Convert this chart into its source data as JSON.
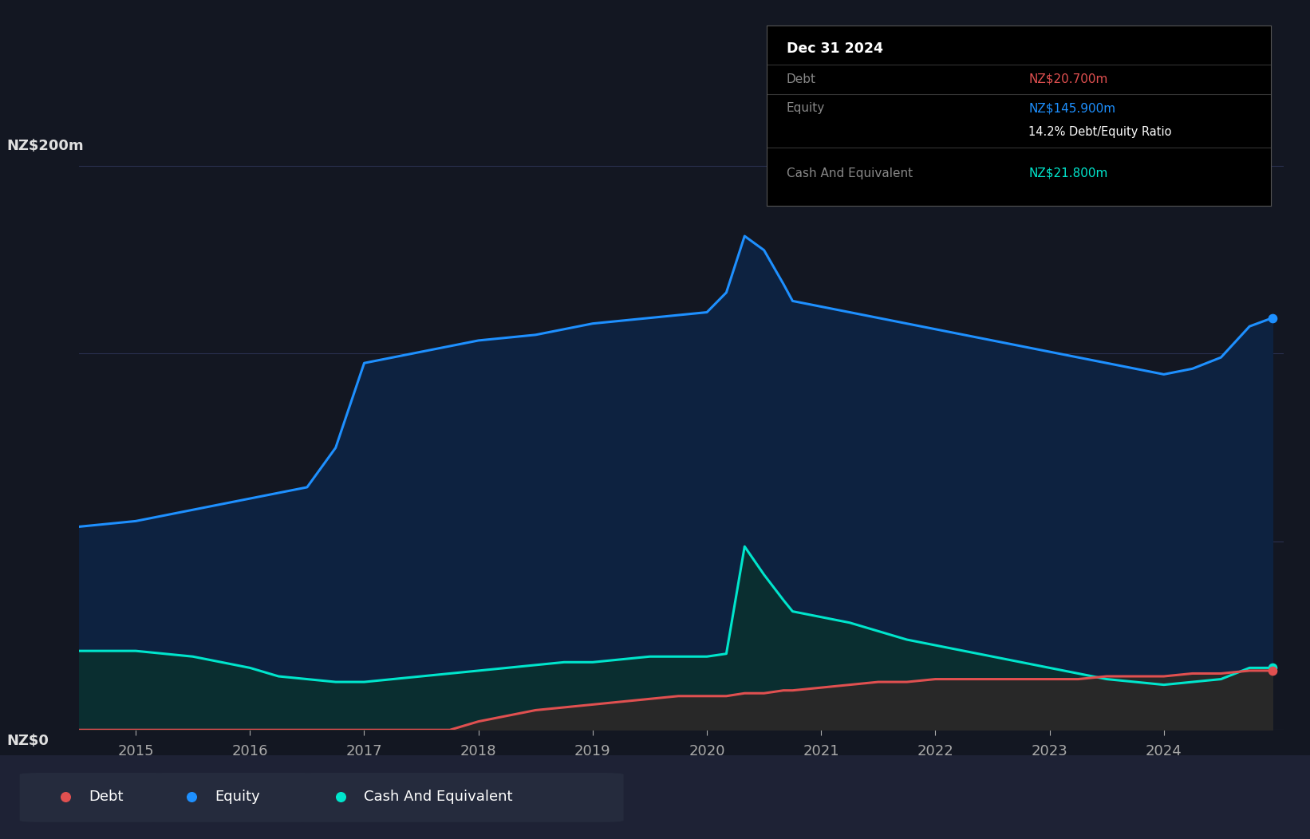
{
  "background_color": "#131722",
  "grid_color": "#2a3050",
  "axis_label_color": "#e0e0e0",
  "tick_color": "#aaaaaa",
  "ylim": [
    0,
    220
  ],
  "series": {
    "equity": {
      "line_color": "#1e90ff",
      "fill_color": "#0d2240"
    },
    "cash": {
      "line_color": "#00e5cc",
      "fill_color": "#0a2e30"
    },
    "debt": {
      "line_color": "#e05050",
      "fill_color": "#282828"
    }
  },
  "tooltip": {
    "date": "Dec 31 2024",
    "debt_label": "Debt",
    "debt_value": "NZ$20.700m",
    "debt_color": "#e05050",
    "equity_label": "Equity",
    "equity_value": "NZ$145.900m",
    "equity_color": "#1e90ff",
    "ratio_text": "14.2% Debt/Equity Ratio",
    "cash_label": "Cash And Equivalent",
    "cash_value": "NZ$21.800m",
    "cash_color": "#00e5cc"
  },
  "legend_items": [
    {
      "label": "Debt",
      "color": "#e05050"
    },
    {
      "label": "Equity",
      "color": "#1e90ff"
    },
    {
      "label": "Cash And Equivalent",
      "color": "#00e5cc"
    }
  ],
  "dates": [
    2014.5,
    2015.0,
    2015.25,
    2015.5,
    2015.75,
    2016.0,
    2016.25,
    2016.5,
    2016.75,
    2017.0,
    2017.25,
    2017.5,
    2017.75,
    2018.0,
    2018.25,
    2018.5,
    2018.75,
    2019.0,
    2019.25,
    2019.5,
    2019.75,
    2020.0,
    2020.17,
    2020.33,
    2020.5,
    2020.67,
    2020.75,
    2021.0,
    2021.25,
    2021.5,
    2021.75,
    2022.0,
    2022.25,
    2022.5,
    2022.75,
    2023.0,
    2023.25,
    2023.5,
    2023.75,
    2024.0,
    2024.25,
    2024.5,
    2024.75,
    2024.95
  ],
  "equity_values": [
    72,
    74,
    76,
    78,
    80,
    82,
    84,
    86,
    100,
    130,
    132,
    134,
    136,
    138,
    139,
    140,
    142,
    144,
    145,
    146,
    147,
    148,
    155,
    175,
    170,
    158,
    152,
    150,
    148,
    146,
    144,
    142,
    140,
    138,
    136,
    134,
    132,
    130,
    128,
    126,
    128,
    132,
    143,
    146
  ],
  "cash_values": [
    28,
    28,
    27,
    26,
    24,
    22,
    19,
    18,
    17,
    17,
    18,
    19,
    20,
    21,
    22,
    23,
    24,
    24,
    25,
    26,
    26,
    26,
    27,
    65,
    55,
    46,
    42,
    40,
    38,
    35,
    32,
    30,
    28,
    26,
    24,
    22,
    20,
    18,
    17,
    16,
    17,
    18,
    22,
    22
  ],
  "debt_values": [
    0,
    0,
    0,
    0,
    0,
    0,
    0,
    0,
    0,
    0,
    0,
    0,
    0,
    3,
    5,
    7,
    8,
    9,
    10,
    11,
    12,
    12,
    12,
    13,
    13,
    14,
    14,
    15,
    16,
    17,
    17,
    18,
    18,
    18,
    18,
    18,
    18,
    19,
    19,
    19,
    20,
    20,
    21,
    21
  ],
  "xticks": [
    2015,
    2016,
    2017,
    2018,
    2019,
    2020,
    2021,
    2022,
    2023,
    2024
  ],
  "xmin": 2014.5,
  "xmax": 2025.05
}
